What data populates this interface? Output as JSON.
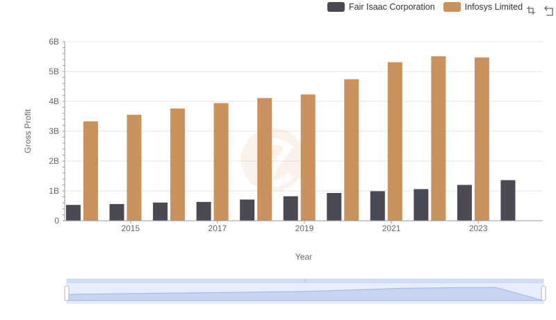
{
  "legend": [
    {
      "name": "Fair Isaac Corporation",
      "color": "#4a4a55"
    },
    {
      "name": "Infosys Limited",
      "color": "#c9925c"
    }
  ],
  "toolbox": [
    "zoom-icon",
    "restore-icon"
  ],
  "chart_data": {
    "type": "bar",
    "xlabel": "Year",
    "ylabel": "Gross Profit",
    "x_tick_labels": [
      "2015",
      "2017",
      "2019",
      "2021",
      "2023"
    ],
    "y_tick_labels": [
      "0",
      "1B",
      "2B",
      "3B",
      "4B",
      "5B",
      "6B"
    ],
    "ylim": [
      0,
      6000000000
    ],
    "categories": [
      "2014",
      "2015",
      "2016",
      "2017",
      "2018",
      "2019",
      "2020",
      "2021",
      "2022",
      "2023",
      "2024"
    ],
    "series": [
      {
        "name": "Fair Isaac Corporation",
        "color": "#4a4a55",
        "values": [
          530000000,
          560000000,
          610000000,
          630000000,
          710000000,
          820000000,
          930000000,
          990000000,
          1060000000,
          1200000000,
          1360000000
        ]
      },
      {
        "name": "Infosys Limited",
        "color": "#c9925c",
        "values": [
          3330000000,
          3550000000,
          3760000000,
          3940000000,
          4110000000,
          4230000000,
          4740000000,
          5310000000,
          5510000000,
          5470000000,
          null
        ]
      }
    ],
    "grid": true,
    "legend_position": "top-right",
    "data_zoom": {
      "start": 0,
      "end": 100
    }
  }
}
